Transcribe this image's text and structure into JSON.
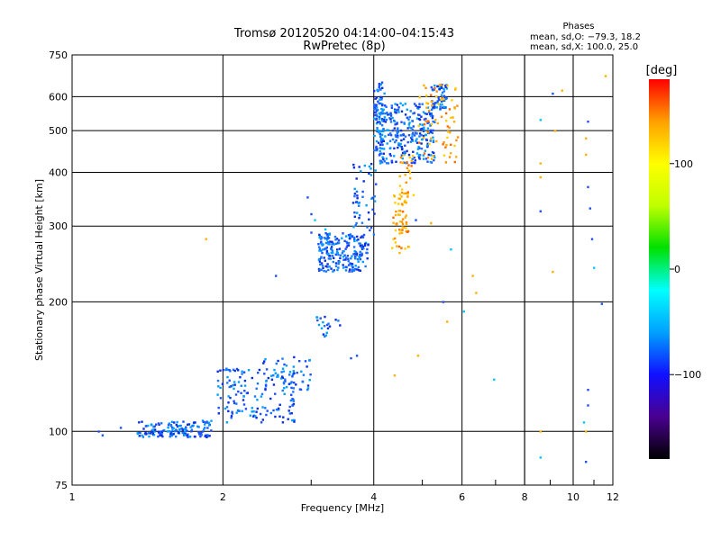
{
  "chart_data": {
    "type": "scatter",
    "title": "Tromsø 20120520 04:14:00–04:15:43",
    "subtitle": "RwPretec (8p)",
    "xlabel": "Frequency [MHz]",
    "ylabel": "Stationary phase Virtual Height [km]",
    "xscale": "log",
    "yscale": "log",
    "xlim": [
      1,
      12
    ],
    "ylim": [
      75,
      750
    ],
    "x_ticks": [
      1,
      2,
      4,
      6,
      8,
      10,
      12
    ],
    "y_ticks": [
      75,
      100,
      200,
      300,
      400,
      500,
      600,
      750
    ],
    "grid": true,
    "info": {
      "heading": "Phases",
      "line1": "mean, sd,O: −79.3, 18.2",
      "line2": "mean, sd,X: 100.0, 25.0"
    },
    "colorbar": {
      "label": "[deg]",
      "range": [
        -180,
        180
      ],
      "ticks": [
        100,
        0,
        -100
      ],
      "colors": [
        "#000000",
        "#4a0090",
        "#1010ff",
        "#00a0ff",
        "#00ffff",
        "#00e000",
        "#c0ff00",
        "#ffff00",
        "#ffa000",
        "#ff0000"
      ]
    },
    "series": [
      {
        "mode": "O",
        "color": "#1f4fff",
        "clusters": [
          {
            "x": [
              1.35,
              1.9
            ],
            "y": [
              97,
              106
            ],
            "n": 150
          },
          {
            "x": [
              1.95,
              2.8
            ],
            "y": [
              105,
              140
            ],
            "n": 150
          },
          {
            "x": [
              2.3,
              3.0
            ],
            "y": [
              125,
              150
            ],
            "n": 50
          },
          {
            "x": [
              3.05,
              3.5
            ],
            "y": [
              165,
              185
            ],
            "n": 20
          },
          {
            "x": [
              3.1,
              3.9
            ],
            "y": [
              235,
              290
            ],
            "n": 220
          },
          {
            "x": [
              3.6,
              4.05
            ],
            "y": [
              280,
              420
            ],
            "n": 50
          },
          {
            "x": [
              4.0,
              4.2
            ],
            "y": [
              450,
              650
            ],
            "n": 80
          },
          {
            "x": [
              4.1,
              5.3
            ],
            "y": [
              420,
              580
            ],
            "n": 280
          },
          {
            "x": [
              5.2,
              5.6
            ],
            "y": [
              560,
              640
            ],
            "n": 60
          }
        ],
        "points": [
          [
            1.13,
            100
          ],
          [
            1.15,
            98
          ],
          [
            1.25,
            102
          ],
          [
            2.55,
            230
          ],
          [
            2.95,
            350
          ],
          [
            3.0,
            320
          ],
          [
            3.0,
            290
          ],
          [
            3.7,
            150
          ],
          [
            3.6,
            148
          ],
          [
            4.85,
            310
          ],
          [
            5.5,
            200
          ],
          [
            8.6,
            325
          ],
          [
            10.7,
            370
          ],
          [
            10.8,
            330
          ],
          [
            10.7,
            125
          ],
          [
            10.7,
            115
          ],
          [
            10.9,
            280
          ],
          [
            11.4,
            198
          ],
          [
            10.6,
            85
          ],
          [
            10.7,
            525
          ],
          [
            9.1,
            610
          ]
        ]
      },
      {
        "mode": "X",
        "color": "#ffb000",
        "clusters": [
          {
            "x": [
              4.35,
              4.7
            ],
            "y": [
              265,
              360
            ],
            "n": 60
          },
          {
            "x": [
              4.5,
              4.8
            ],
            "y": [
              350,
              440
            ],
            "n": 25
          },
          {
            "x": [
              4.9,
              5.9
            ],
            "y": [
              420,
              640
            ],
            "n": 70
          }
        ],
        "points": [
          [
            1.85,
            280
          ],
          [
            4.5,
            260
          ],
          [
            4.9,
            150
          ],
          [
            4.4,
            135
          ],
          [
            5.2,
            305
          ],
          [
            5.6,
            180
          ],
          [
            6.3,
            230
          ],
          [
            6.4,
            210
          ],
          [
            8.6,
            420
          ],
          [
            8.6,
            390
          ],
          [
            9.1,
            235
          ],
          [
            9.5,
            620
          ],
          [
            10.6,
            480
          ],
          [
            10.6,
            440
          ],
          [
            11.6,
            670
          ],
          [
            9.2,
            500
          ],
          [
            8.6,
            100
          ],
          [
            10.6,
            100
          ]
        ]
      },
      {
        "mode": "noise",
        "color": "#00c8ff",
        "points": [
          [
            3.05,
            310
          ],
          [
            3.2,
            295
          ],
          [
            5.7,
            265
          ],
          [
            6.95,
            132
          ],
          [
            8.6,
            530
          ],
          [
            8.6,
            87
          ],
          [
            10.5,
            105
          ],
          [
            11.0,
            240
          ],
          [
            6.05,
            190
          ]
        ]
      }
    ]
  }
}
